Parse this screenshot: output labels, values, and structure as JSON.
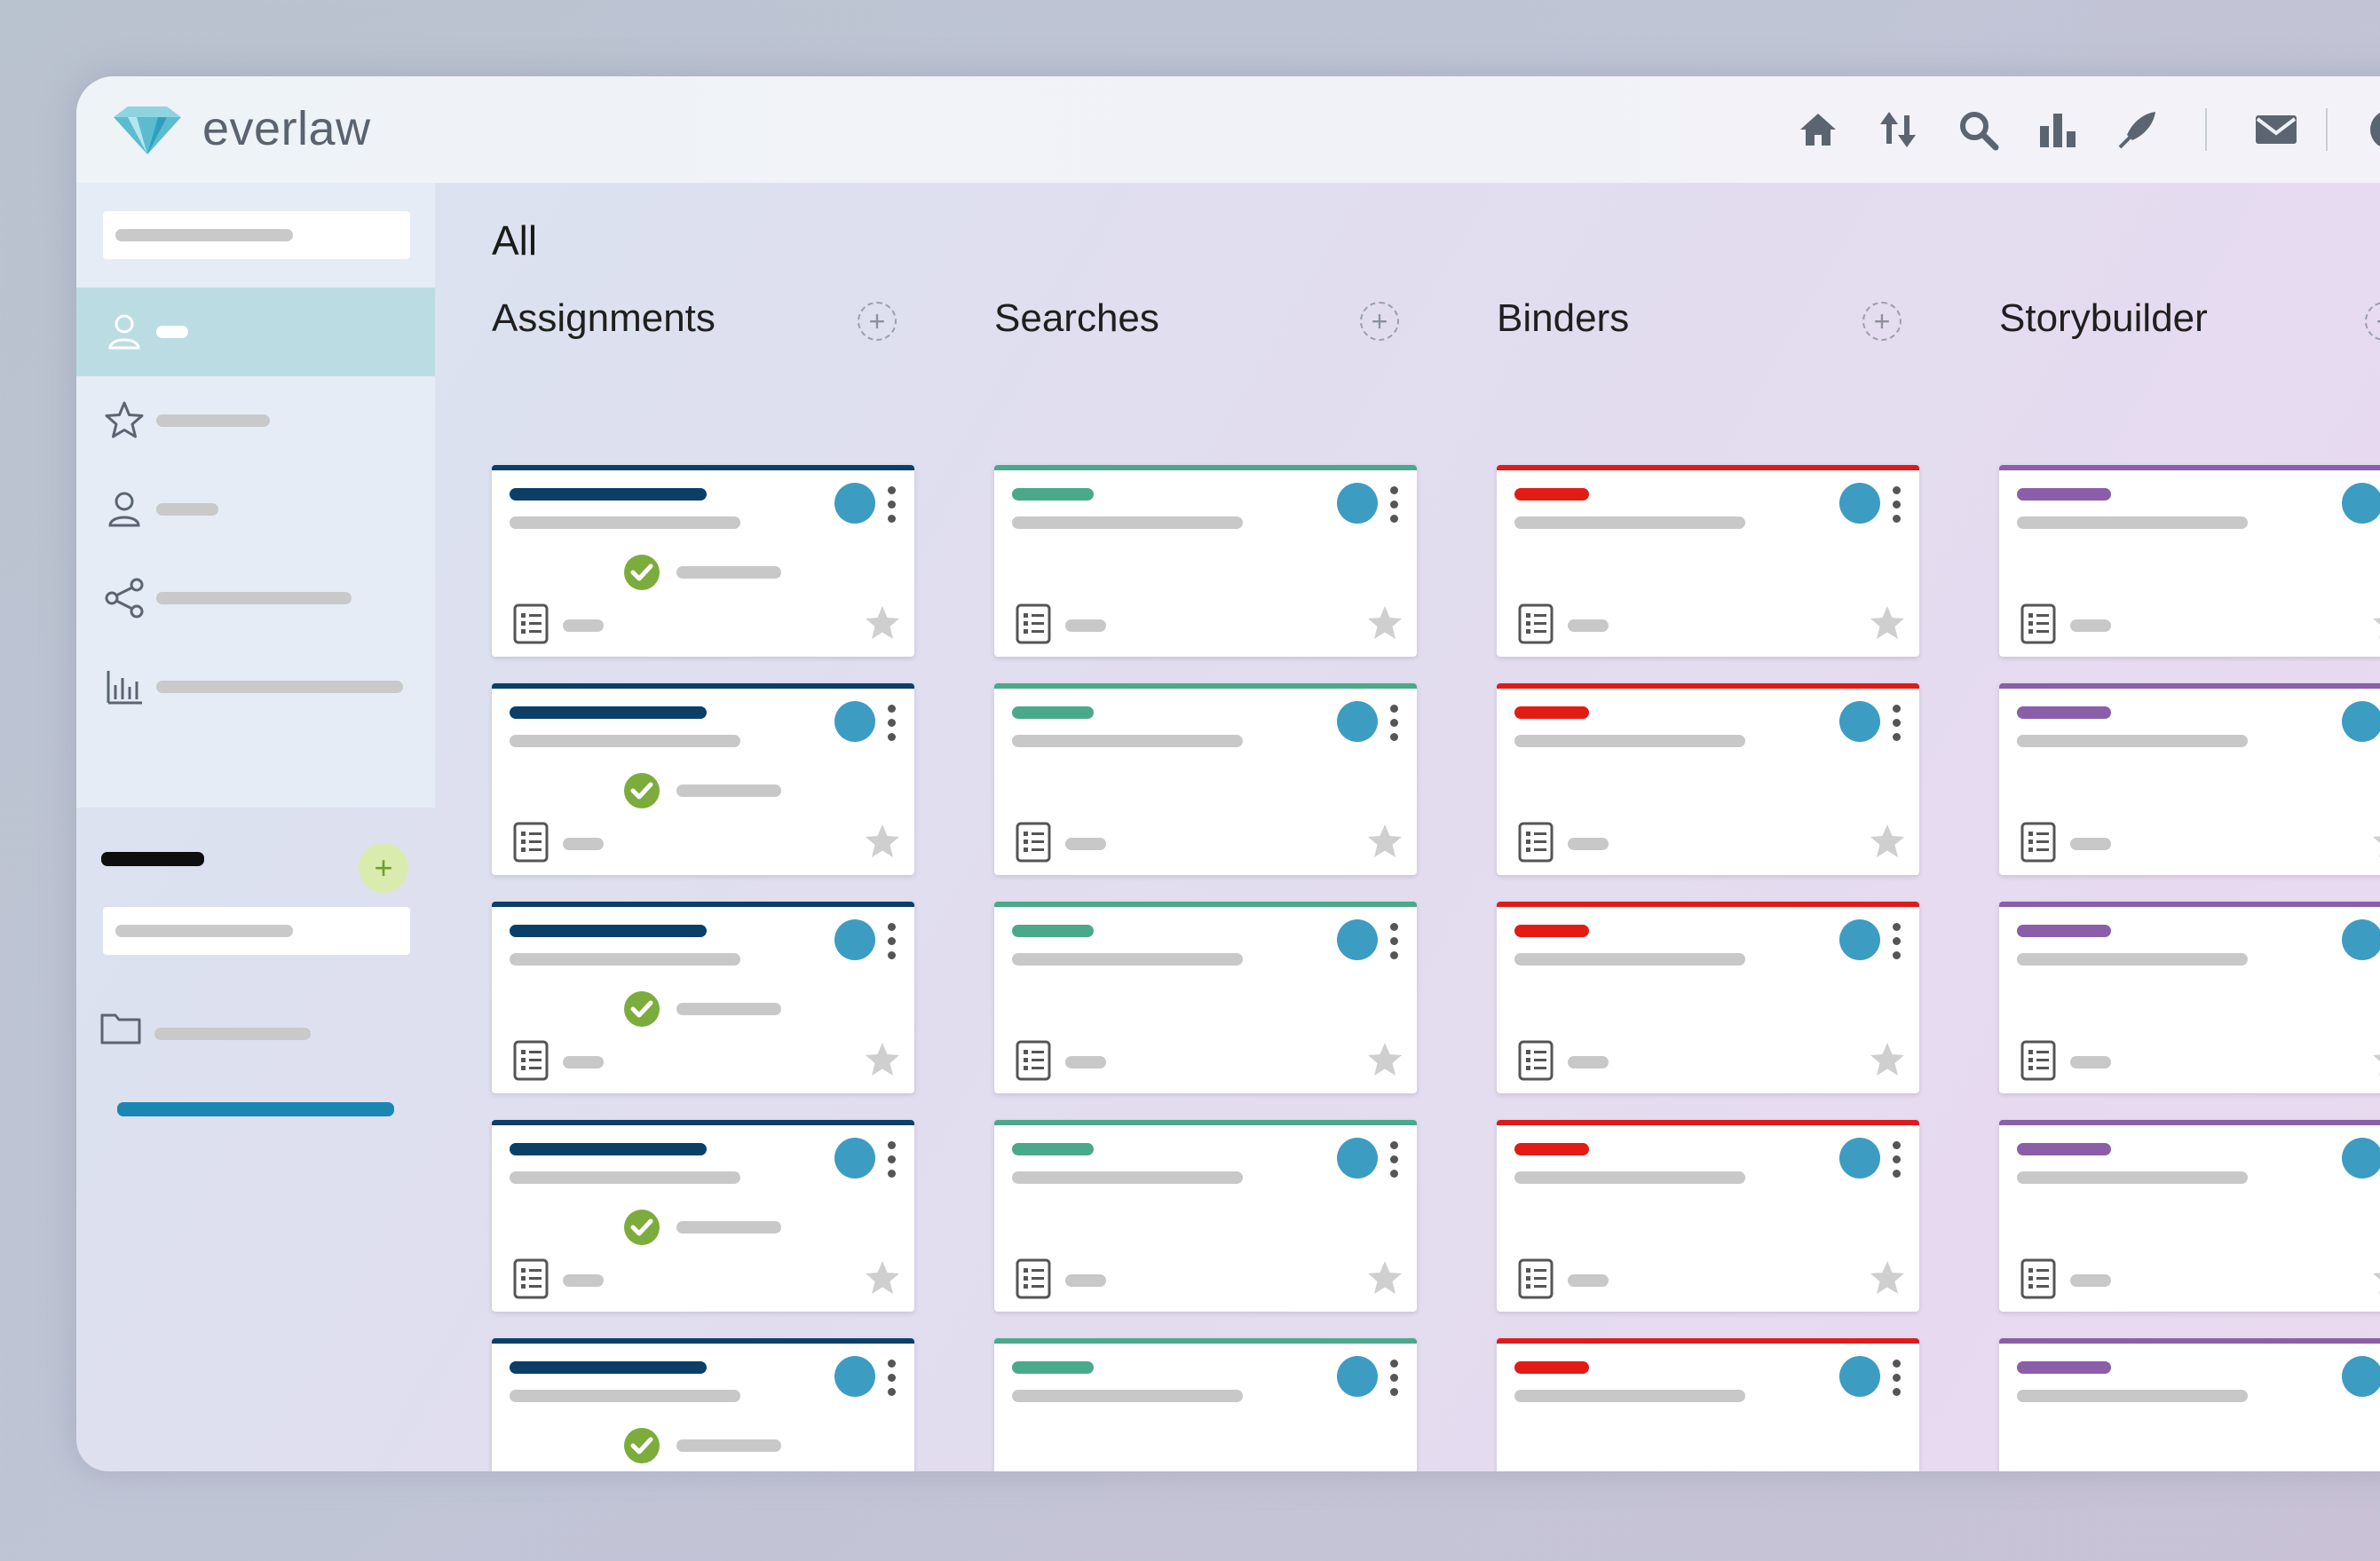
{
  "app": {
    "brand": "everlaw"
  },
  "topbar": {
    "icons": [
      "home-icon",
      "transfer-icon",
      "search-icon",
      "analytics-icon",
      "pen-icon",
      "mail-icon",
      "help-icon"
    ]
  },
  "sidebar": {
    "items": [
      {
        "icon": "user-icon",
        "active": true
      },
      {
        "icon": "star-icon",
        "active": false
      },
      {
        "icon": "user-icon",
        "active": false
      },
      {
        "icon": "share-icon",
        "active": false
      },
      {
        "icon": "bar-chart-icon",
        "active": false
      }
    ],
    "add_button": "+"
  },
  "main": {
    "page_title": "All",
    "columns": [
      {
        "title": "Assignments",
        "accent": "#0b3f68",
        "bar_color": "#0b3f68",
        "has_check": true
      },
      {
        "title": "Searches",
        "accent": "#4aa98a",
        "bar_color": "#4aa98a",
        "has_check": false
      },
      {
        "title": "Binders",
        "accent": "#dd1c1a",
        "bar_color": "#e21c14",
        "has_check": false
      },
      {
        "title": "Storybuilder",
        "accent": "#8a5ea8",
        "bar_color": "#8a5ea8",
        "has_check": false
      }
    ],
    "col_add_label": "+"
  },
  "colors": {
    "owner_dot": "#3d9cc2",
    "check": "#7cac3c",
    "sidebar_active": "#bcdce4",
    "progress_bar": "#1a87b3"
  }
}
